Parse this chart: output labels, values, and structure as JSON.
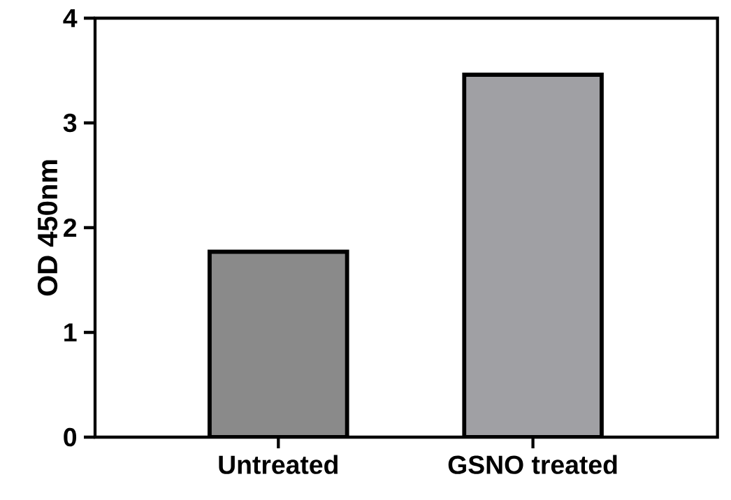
{
  "chart_data": {
    "type": "bar",
    "ylabel": "OD 450nm",
    "categories": [
      "Untreated",
      "GSNO treated"
    ],
    "values": [
      1.77,
      3.46
    ],
    "colors": [
      "#8a8a8a",
      "#a0a0a4"
    ],
    "ylim": [
      0,
      4
    ],
    "yticks": [
      0,
      1,
      2,
      3,
      4
    ]
  }
}
